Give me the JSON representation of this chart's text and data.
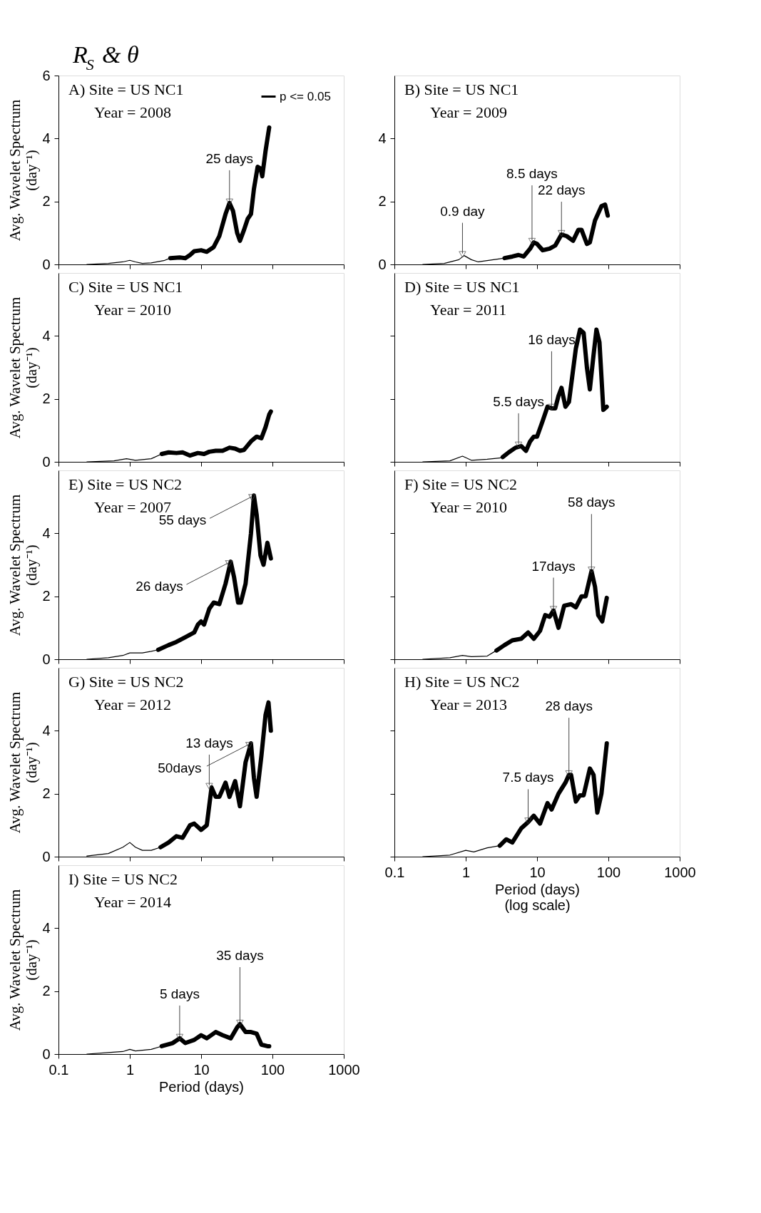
{
  "chart_data": [
    {
      "type": "line",
      "title": "R$_{S}$ & θ",
      "ylabel": "Avg. Wavelet Spectrum\n(day⁻¹)",
      "annotations": [
        "A) Site = US NC1",
        "Year = 2008",
        {
          "text": "25 days",
          "x": 25,
          "y": 1.95
        }
      ],
      "log": "x",
      "xlim": [
        0.1,
        1000
      ],
      "xticks": [
        0.1,
        1,
        10,
        100,
        1000
      ],
      "ylim": [
        0,
        6
      ],
      "yticks": [
        0,
        2,
        4,
        6
      ],
      "tick_labels": "y",
      "legend": "top right",
      "grid": false,
      "line_style": "solid",
      "series": [
        {
          "color": "#000000",
          "x": [
            0.25,
            0.5,
            0.8,
            1,
            1.2,
            1.5,
            2,
            3,
            3.7
          ],
          "values": [
            0,
            0.03,
            0.08,
            0.13,
            0.08,
            0.03,
            0.05,
            0.12,
            0.2
          ]
        },
        {
          "name": "p <= 0.05",
          "color": "#000000",
          "x": [
            3.7,
            5,
            6,
            7,
            8,
            10,
            12,
            15,
            18,
            22,
            25,
            28,
            32,
            35,
            40,
            45,
            50,
            55,
            62,
            68,
            72,
            80,
            90
          ],
          "values": [
            0.2,
            0.22,
            0.2,
            0.3,
            0.42,
            0.45,
            0.4,
            0.55,
            0.9,
            1.6,
            1.95,
            1.7,
            1.0,
            0.75,
            1.1,
            1.45,
            1.6,
            2.4,
            3.1,
            3.05,
            2.8,
            3.6,
            4.35
          ]
        }
      ]
    },
    {
      "type": "line",
      "annotations": [
        "B) Site = US NC1",
        "Year = 2009",
        {
          "text": "0.9 day",
          "x": 0.9,
          "y": 0.28
        },
        {
          "text": "8.5 days",
          "x": 8.5,
          "y": 0.7
        },
        {
          "text": "22 days",
          "x": 22,
          "y": 0.95
        }
      ],
      "log": "x",
      "xlim": [
        0.1,
        1000
      ],
      "xticks": [
        0.1,
        1,
        10,
        100,
        1000
      ],
      "ylim": [
        0,
        6
      ],
      "yticks": [
        0,
        2,
        4
      ],
      "tick_labels": "y",
      "grid": false,
      "line_style": "solid",
      "series": [
        {
          "color": "#000000",
          "x": [
            0.25,
            0.5,
            0.8,
            0.95,
            1.2,
            1.5,
            2,
            3,
            3.5
          ],
          "values": [
            0,
            0.03,
            0.15,
            0.28,
            0.15,
            0.08,
            0.12,
            0.18,
            0.2
          ]
        },
        {
          "color": "#000000",
          "x": [
            3.5,
            4.5,
            5.5,
            6.5,
            8,
            9,
            10,
            12,
            15,
            18,
            22,
            26,
            32,
            38,
            42,
            50,
            55,
            65,
            80,
            90,
            98
          ],
          "values": [
            0.2,
            0.25,
            0.3,
            0.25,
            0.5,
            0.7,
            0.65,
            0.45,
            0.5,
            0.6,
            0.95,
            0.9,
            0.75,
            1.1,
            1.1,
            0.65,
            0.7,
            1.4,
            1.85,
            1.9,
            1.55
          ]
        }
      ]
    },
    {
      "type": "line",
      "ylabel": "Avg. Wavelet Spectrum\n(day⁻¹)",
      "annotations": [
        "C) Site = US NC1",
        "Year = 2010"
      ],
      "log": "x",
      "xlim": [
        0.1,
        1000
      ],
      "xticks": [
        0.1,
        1,
        10,
        100,
        1000
      ],
      "ylim": [
        0,
        6
      ],
      "yticks": [
        0,
        2,
        4
      ],
      "tick_labels": "y",
      "grid": false,
      "line_style": "solid",
      "series": [
        {
          "color": "#000000",
          "x": [
            0.25,
            0.6,
            0.9,
            1.2,
            2,
            2.8
          ],
          "values": [
            0,
            0.03,
            0.1,
            0.05,
            0.1,
            0.25
          ]
        },
        {
          "color": "#000000",
          "x": [
            2.8,
            3.5,
            4.5,
            5.5,
            7,
            9,
            11,
            13,
            16,
            20,
            25,
            30,
            35,
            40,
            50,
            60,
            70,
            80,
            90,
            95
          ],
          "values": [
            0.25,
            0.3,
            0.28,
            0.3,
            0.2,
            0.28,
            0.25,
            0.32,
            0.35,
            0.35,
            0.45,
            0.42,
            0.35,
            0.38,
            0.65,
            0.8,
            0.75,
            1.1,
            1.5,
            1.6
          ]
        }
      ]
    },
    {
      "type": "line",
      "annotations": [
        "D) Site = US NC1",
        "Year = 2011",
        {
          "text": "5.5 days",
          "x": 5.5,
          "y": 0.5
        },
        {
          "text": "16 days",
          "x": 16,
          "y": 1.7
        }
      ],
      "log": "x",
      "xlim": [
        0.1,
        1000
      ],
      "xticks": [
        0.1,
        1,
        10,
        100,
        1000
      ],
      "ylim": [
        0,
        6
      ],
      "yticks": [
        0,
        2,
        4
      ],
      "tick_labels": false,
      "grid": false,
      "line_style": "solid",
      "series": [
        {
          "color": "#000000",
          "x": [
            0.25,
            0.6,
            0.9,
            1.2,
            2,
            3,
            3.3
          ],
          "values": [
            0,
            0.03,
            0.18,
            0.05,
            0.08,
            0.12,
            0.15
          ]
        },
        {
          "color": "#000000",
          "x": [
            3.3,
            4,
            5,
            6,
            7,
            8,
            9,
            10,
            12,
            14,
            16,
            18,
            20,
            22,
            25,
            28,
            35,
            40,
            45,
            50,
            55,
            62,
            68,
            75,
            85,
            95
          ],
          "values": [
            0.15,
            0.3,
            0.45,
            0.5,
            0.35,
            0.65,
            0.8,
            0.8,
            1.3,
            1.75,
            1.7,
            1.7,
            2.1,
            2.35,
            1.75,
            1.9,
            3.6,
            4.2,
            4.1,
            3.0,
            2.3,
            3.4,
            4.2,
            3.8,
            1.65,
            1.75
          ]
        }
      ]
    },
    {
      "type": "line",
      "ylabel": "Avg. Wavelet Spectrum\n(day⁻¹)",
      "annotations": [
        "E) Site = US NC2",
        "Year = 2007",
        {
          "text": "55 days",
          "x": 55,
          "y": 5.2
        },
        {
          "text": "26 days",
          "x": 26,
          "y": 3.1
        }
      ],
      "log": "x",
      "xlim": [
        0.1,
        1000
      ],
      "xticks": [
        0.1,
        1,
        10,
        100,
        1000
      ],
      "ylim": [
        0,
        6
      ],
      "yticks": [
        0,
        2,
        4
      ],
      "tick_labels": "y",
      "grid": false,
      "line_style": "solid",
      "series": [
        {
          "color": "#000000",
          "x": [
            0.25,
            0.5,
            0.8,
            1,
            1.5,
            2,
            2.5
          ],
          "values": [
            0,
            0.05,
            0.12,
            0.2,
            0.2,
            0.25,
            0.3
          ]
        },
        {
          "color": "#000000",
          "x": [
            2.5,
            3.5,
            4.5,
            6,
            8,
            9,
            10,
            11,
            13,
            15,
            18,
            22,
            26,
            29,
            33,
            36,
            42,
            50,
            55,
            60,
            68,
            75,
            85,
            95
          ],
          "values": [
            0.3,
            0.45,
            0.55,
            0.7,
            0.85,
            1.1,
            1.2,
            1.1,
            1.6,
            1.8,
            1.75,
            2.4,
            3.1,
            2.6,
            1.8,
            1.8,
            2.4,
            4.0,
            5.2,
            4.6,
            3.3,
            3.0,
            3.7,
            3.2
          ]
        }
      ]
    },
    {
      "type": "line",
      "annotations": [
        "F) Site = US NC2",
        "Year = 2010",
        {
          "text": "17days",
          "x": 17,
          "y": 1.55
        },
        {
          "text": "58 days",
          "x": 58,
          "y": 2.8
        }
      ],
      "log": "x",
      "xlim": [
        0.1,
        1000
      ],
      "xticks": [
        0.1,
        1,
        10,
        100,
        1000
      ],
      "ylim": [
        0,
        6
      ],
      "yticks": [
        0,
        2,
        4
      ],
      "tick_labels": false,
      "grid": false,
      "line_style": "solid",
      "series": [
        {
          "color": "#000000",
          "x": [
            0.25,
            0.6,
            0.9,
            1.2,
            2,
            2.7
          ],
          "values": [
            0,
            0.05,
            0.12,
            0.08,
            0.1,
            0.28
          ]
        },
        {
          "color": "#000000",
          "x": [
            2.7,
            3.5,
            4.5,
            6,
            7.5,
            9,
            11,
            13,
            15,
            17,
            20,
            24,
            30,
            35,
            42,
            48,
            58,
            65,
            72,
            82,
            95
          ],
          "values": [
            0.28,
            0.45,
            0.6,
            0.65,
            0.85,
            0.65,
            0.9,
            1.4,
            1.35,
            1.55,
            1.0,
            1.7,
            1.75,
            1.65,
            2.0,
            2.0,
            2.8,
            2.3,
            1.4,
            1.2,
            1.95
          ]
        }
      ]
    },
    {
      "type": "line",
      "ylabel": "Avg. Wavelet Spectrum\n(day⁻¹)",
      "annotations": [
        "G) Site = US NC2",
        "Year = 2012",
        {
          "text": "13 days",
          "x": 13,
          "y": 2.2
        },
        {
          "text": "50days",
          "x": 50,
          "y": 3.6
        }
      ],
      "log": "x",
      "xlim": [
        0.1,
        1000
      ],
      "xticks": [
        0.1,
        1,
        10,
        100,
        1000
      ],
      "ylim": [
        0,
        6
      ],
      "yticks": [
        0,
        2,
        4
      ],
      "tick_labels": "y",
      "grid": false,
      "line_style": "solid",
      "series": [
        {
          "color": "#000000",
          "x": [
            0.25,
            0.5,
            0.8,
            1,
            1.2,
            1.5,
            2,
            2.7
          ],
          "values": [
            0.02,
            0.1,
            0.3,
            0.45,
            0.3,
            0.2,
            0.2,
            0.3
          ]
        },
        {
          "color": "#000000",
          "x": [
            2.7,
            3.5,
            4.5,
            5.5,
            7,
            8,
            10,
            12,
            14,
            16,
            18,
            22,
            25,
            30,
            35,
            42,
            50,
            55,
            60,
            70,
            80,
            88,
            95
          ],
          "values": [
            0.3,
            0.45,
            0.65,
            0.6,
            1.0,
            1.05,
            0.85,
            1.0,
            2.2,
            1.9,
            1.9,
            2.35,
            1.9,
            2.4,
            1.6,
            3.0,
            3.6,
            2.5,
            1.9,
            3.2,
            4.5,
            4.9,
            4.0
          ]
        }
      ]
    },
    {
      "type": "line",
      "xlabel": "Period (days)\n(log scale)",
      "annotations": [
        "H) Site = US NC2",
        "Year = 2013",
        {
          "text": "7.5 days",
          "x": 7.5,
          "y": 1.1
        },
        {
          "text": "28 days",
          "x": 28,
          "y": 2.6
        }
      ],
      "log": "x",
      "xlim": [
        0.1,
        1000
      ],
      "xticks": [
        0.1,
        1,
        10,
        100,
        1000
      ],
      "ylim": [
        0,
        6
      ],
      "yticks": [
        0,
        2,
        4
      ],
      "tick_labels": "x",
      "grid": false,
      "line_style": "solid",
      "series": [
        {
          "color": "#000000",
          "x": [
            0.25,
            0.6,
            1,
            1.3,
            2,
            3
          ],
          "values": [
            0,
            0.05,
            0.2,
            0.15,
            0.28,
            0.35
          ]
        },
        {
          "color": "#000000",
          "x": [
            3,
            3.7,
            4.5,
            6,
            7.5,
            9,
            11,
            14,
            16,
            20,
            25,
            28,
            30,
            35,
            40,
            45,
            55,
            62,
            70,
            80,
            95
          ],
          "values": [
            0.35,
            0.55,
            0.45,
            0.9,
            1.1,
            1.3,
            1.05,
            1.7,
            1.5,
            2.0,
            2.35,
            2.6,
            2.6,
            1.75,
            1.95,
            1.95,
            2.8,
            2.6,
            1.4,
            2.0,
            3.6
          ]
        }
      ]
    },
    {
      "type": "line",
      "xlabel": "Period (days)",
      "ylabel": "Avg. Wavelet Spectrum\n(day⁻¹)",
      "annotations": [
        "I) Site = US NC2",
        "Year = 2014",
        {
          "text": "5 days",
          "x": 5,
          "y": 0.5
        },
        {
          "text": "35 days",
          "x": 35,
          "y": 0.95
        }
      ],
      "log": "x",
      "xlim": [
        0.1,
        1000
      ],
      "xticks": [
        0.1,
        1,
        10,
        100,
        1000
      ],
      "ylim": [
        0,
        6
      ],
      "yticks": [
        0,
        2,
        4
      ],
      "grid": false,
      "line_style": "solid",
      "series": [
        {
          "color": "#000000",
          "x": [
            0.25,
            0.5,
            0.8,
            1,
            1.2,
            2,
            2.8
          ],
          "values": [
            0,
            0.05,
            0.08,
            0.15,
            0.1,
            0.15,
            0.25
          ]
        },
        {
          "color": "#000000",
          "x": [
            2.8,
            4,
            5,
            6,
            8,
            10,
            12,
            16,
            20,
            26,
            32,
            35,
            42,
            50,
            60,
            70,
            85,
            90
          ],
          "values": [
            0.25,
            0.35,
            0.5,
            0.35,
            0.45,
            0.6,
            0.5,
            0.7,
            0.6,
            0.5,
            0.85,
            0.95,
            0.7,
            0.7,
            0.65,
            0.3,
            0.25,
            0.25
          ]
        }
      ]
    }
  ]
}
